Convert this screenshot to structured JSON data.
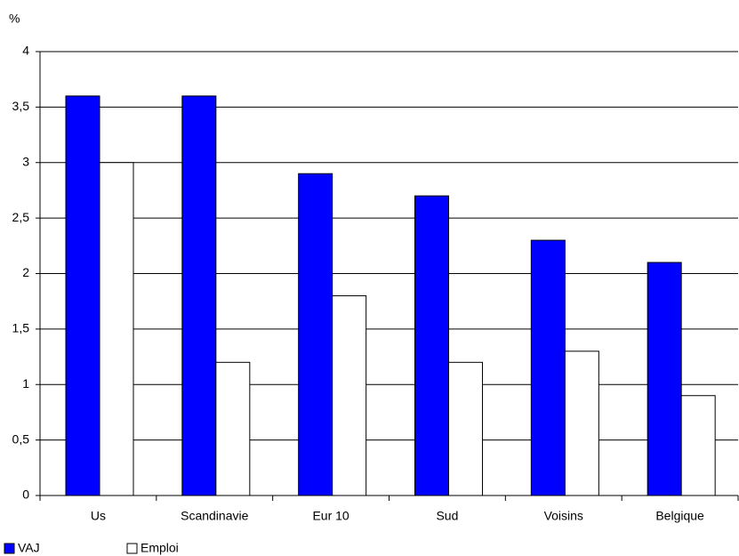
{
  "chart_data": {
    "type": "bar",
    "y_label": "%",
    "categories": [
      "Us",
      "Scandinavie",
      "Eur 10",
      "Sud",
      "Voisins",
      "Belgique"
    ],
    "series": [
      {
        "name": "VAJ",
        "color": "#0000ff",
        "values": [
          3.6,
          3.6,
          2.9,
          2.7,
          2.3,
          2.1
        ]
      },
      {
        "name": "Emploi",
        "color": "#ffffff",
        "values": [
          3.0,
          1.2,
          1.8,
          1.2,
          1.3,
          0.9
        ]
      }
    ],
    "ylim": [
      0,
      4
    ],
    "yticks": [
      0,
      {
        "value": 0.5,
        "label": "0,5"
      },
      1,
      {
        "value": 1.5,
        "label": "1,5"
      },
      2,
      {
        "value": 2.5,
        "label": "2,5"
      },
      3,
      {
        "value": 3.5,
        "label": "3,5"
      },
      4
    ],
    "grid": true
  }
}
